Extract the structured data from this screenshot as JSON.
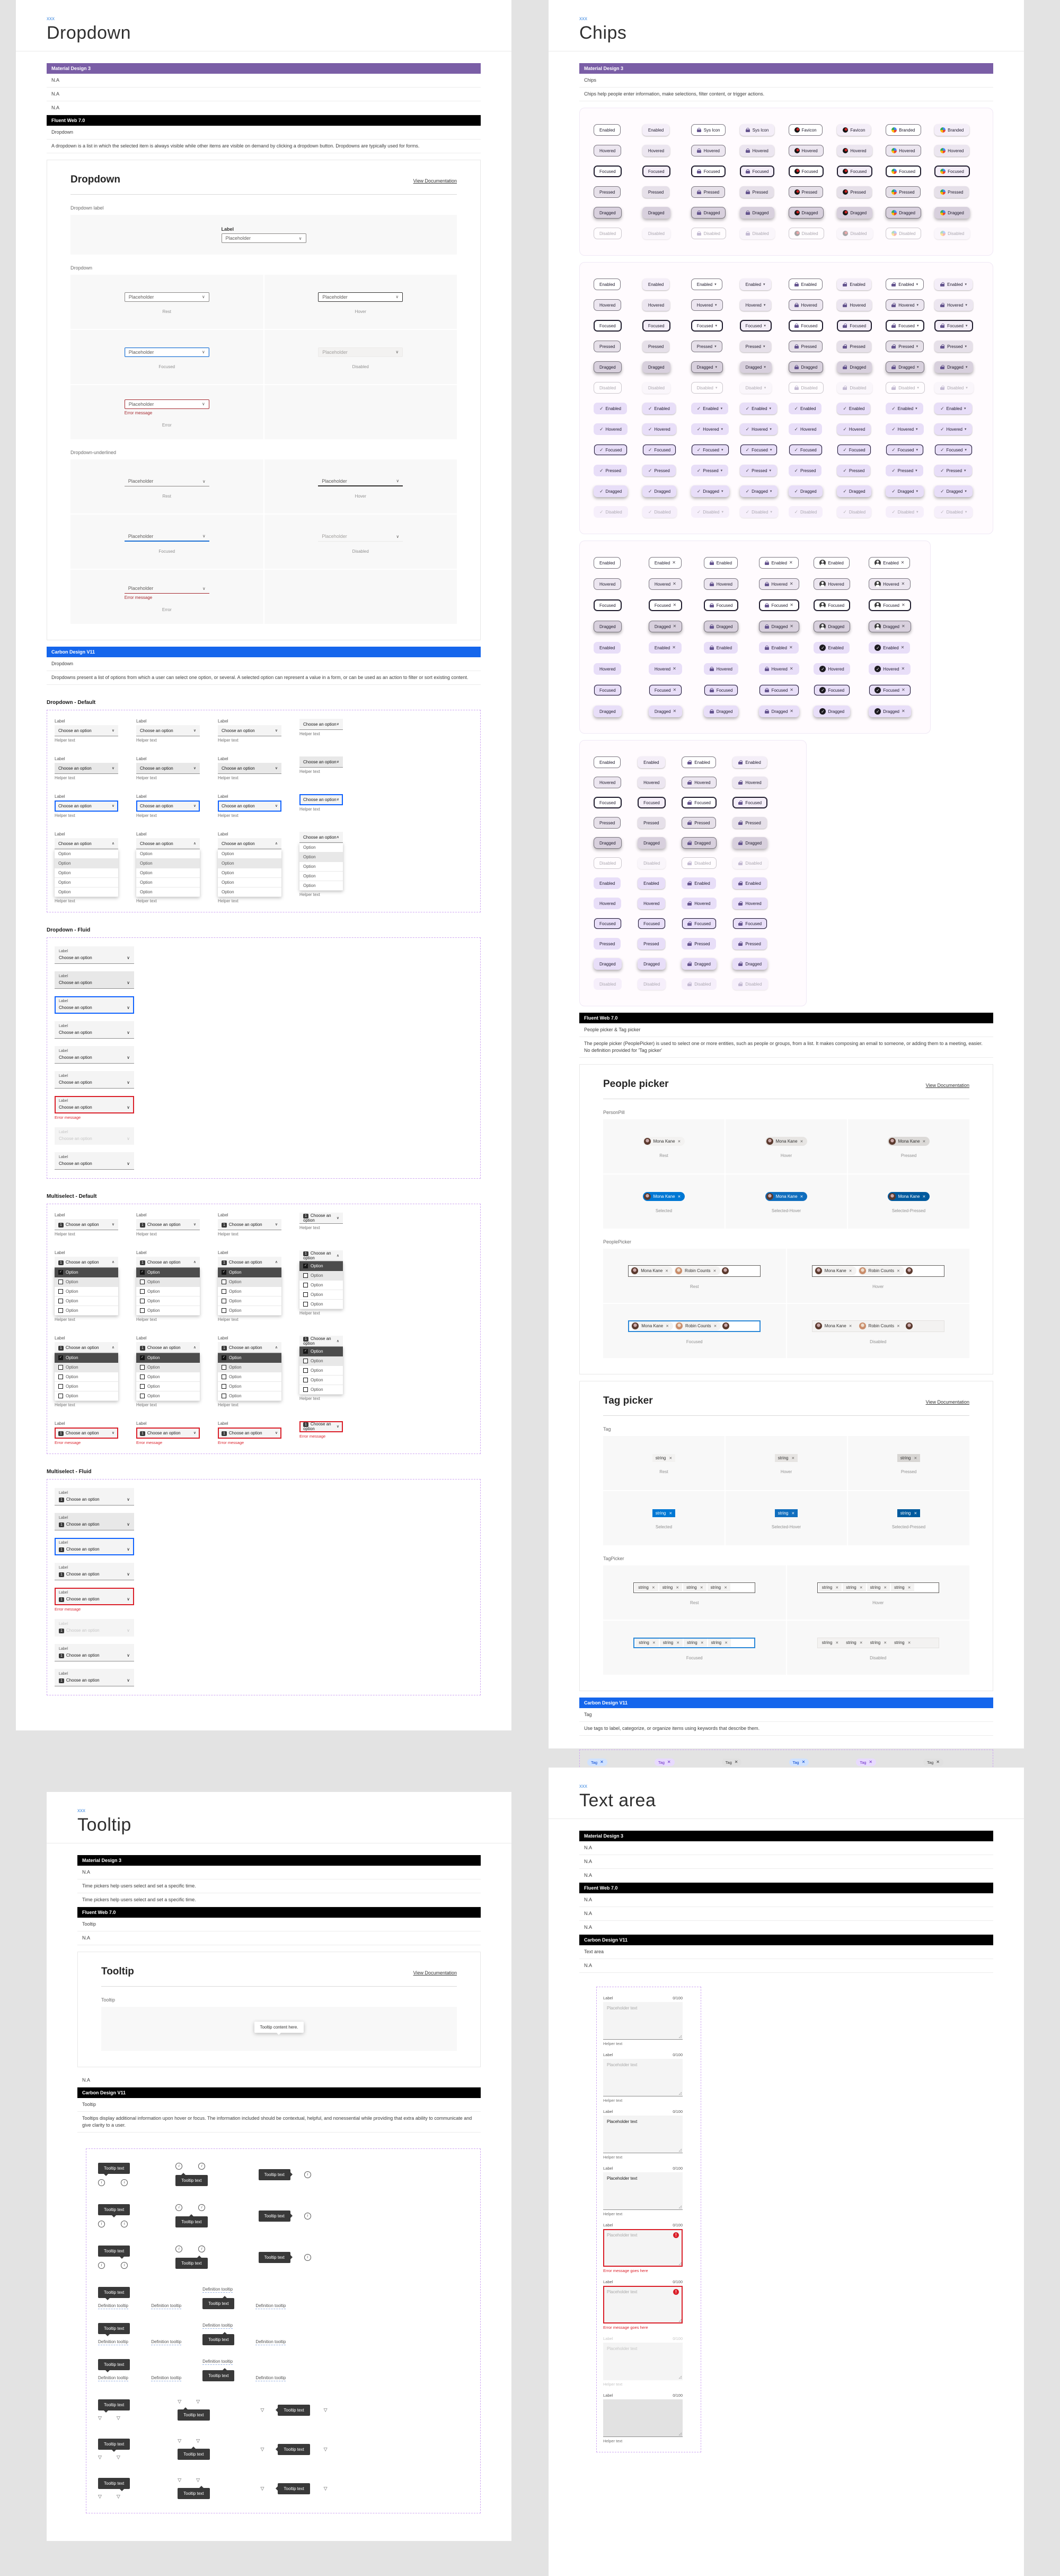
{
  "shared": {
    "xxx_label": "xxx",
    "view_documentation": "View Documentation",
    "na": "N.A"
  },
  "frameworks": {
    "md3": "Material Design 3",
    "fluent": "Fluent Web 7.0",
    "carbon": "Carbon Design V11"
  },
  "colors": {
    "md3_header": "#7a5ea6",
    "carbon_header": "#1566ec",
    "black_header": "#000000",
    "fluent_blue": "#0078d4",
    "carbon_focus": "#0f62fe",
    "carbon_error": "#da1e28",
    "fluent_error": "#a4262c",
    "chip_selected_bg": "#e8def8",
    "dashed_border": "#cfa7f2"
  },
  "dropdown_panel": {
    "title": "Dropdown",
    "md3_rows": [
      "N.A",
      "N.A",
      "N.A"
    ],
    "fluent": {
      "component": "Dropdown",
      "description": "A dropdown is a list in which the selected item is always visible while other items are visible on demand by clicking a dropdown button. Dropdowns are typically used for forms.",
      "card_title": "Dropdown",
      "section_label_demo": "Dropdown label",
      "section_boxed": "Dropdown",
      "section_underlined": "Dropdown-underlined",
      "field_label": "Label",
      "placeholder": "Placeholder",
      "error_message": "Error message",
      "states": [
        "Rest",
        "Hover",
        "Focused",
        "Disabled",
        "Error"
      ]
    },
    "carbon": {
      "component": "Dropdown",
      "description": "Dropdowns present a list of options from which a user can select one option, or several. A selected option can represent a value in a form, or can be used as an action to filter or sort existing content.",
      "field_label": "Label",
      "value": "Choose an option",
      "helper": "Helper text",
      "option": "Option",
      "sections": [
        "Dropdown - Default",
        "Dropdown - Fluid",
        "Multiselect - Default",
        "Multiselect - Fluid"
      ]
    }
  },
  "chips_panel": {
    "title": "Chips",
    "md3": {
      "component": "Chips",
      "description": "Chips help people enter information, make selections, filter content, or trigger actions.",
      "states": [
        "Enabled",
        "Hovered",
        "Focused",
        "Pressed",
        "Dragged",
        "Disabled"
      ],
      "group1_first_row": [
        "Enabled",
        "Enabled",
        "Sys Icon",
        "Sys Icon",
        "Favicon",
        "Favicon",
        "Branded",
        "Branded"
      ],
      "group3_states": [
        "Enabled",
        "Hovered",
        "Focused",
        "Dragged"
      ]
    },
    "fluent": {
      "component": "People picker & Tag picker",
      "description_1": "The people picker (PeoplePicker) is used to select one or more entities, such as people or groups, from a list. It makes composing an email to someone, or adding them to a meeting, easier.",
      "description_2": "No definition provided for 'Tag picker'",
      "people_card_title": "People picker",
      "person_pill_label": "PersonPill",
      "people_picker_label": "PeoplePicker",
      "person_1": "Mona Kane",
      "person_2": "Robin Counts",
      "pill_states": [
        "Rest",
        "Hover",
        "Pressed",
        "Selected",
        "Selected-Hover",
        "Selected-Pressed"
      ],
      "picker_states": [
        "Rest",
        "Hover",
        "Focused",
        "Disabled"
      ],
      "tag_card_title": "Tag picker",
      "tag_label": "Tag",
      "tag_picker_label": "TagPicker",
      "tag_text": "string"
    },
    "carbon": {
      "component": "Tag",
      "description": "Use tags to label, categorize, or organize items using keywords that describe them.",
      "tag_text": "Tag",
      "tag_palette": {
        "blue": [
          "#d0e2ff",
          "#0043ce"
        ],
        "purple": [
          "#e8daff",
          "#6929c4"
        ],
        "gray": [
          "#e0e0e0",
          "#393939"
        ],
        "cyan": [
          "#bae6ff",
          "#00539a"
        ],
        "red": [
          "#ffd7d9",
          "#a2191f"
        ],
        "warmgray": [
          "#e5e0df",
          "#3c3838"
        ],
        "green": [
          "#a7f0ba",
          "#0e6027"
        ],
        "teal": [
          "#9ef0f0",
          "#005d5d"
        ],
        "black": [
          "#393939",
          "#ffffff"
        ],
        "magenta": [
          "#ffd6e8",
          "#9f1853"
        ],
        "coolgray": [
          "#dde1e6",
          "#343a3f"
        ],
        "outline": [
          "#ffffff",
          "#161616"
        ]
      }
    }
  },
  "tooltip_panel": {
    "title": "Tooltip",
    "md3_rows": [
      "N.A",
      "Time pickers help users select and set a specific time.",
      "Time pickers help users select and set a specific time."
    ],
    "fluent": {
      "component": "Tooltip",
      "na": "N.A",
      "card_title": "Tooltip",
      "section_label": "Tooltip",
      "bubble_text": "Tooltip content here."
    },
    "after_card_row": "N.A",
    "carbon": {
      "component": "Tooltip",
      "description": "Tooltips display additional information upon hover or focus. The information included should be contextual, helpful, and nonessential while providing that extra ability to communicate and give clarity to a user.",
      "tooltip_text": "Tooltip text",
      "definition_text": "Definition tooltip"
    }
  },
  "textarea_panel": {
    "title": "Text area",
    "md3_rows": [
      "N.A",
      "N.A",
      "N.A"
    ],
    "fluent_rows": [
      "N.A",
      "N.A",
      "N.A"
    ],
    "carbon": {
      "component": "Text area",
      "na": "N.A",
      "label": "Label",
      "counter": "0/100",
      "placeholder": "Placeholder text",
      "helper": "Helper text",
      "error": "Error message goes here"
    }
  }
}
